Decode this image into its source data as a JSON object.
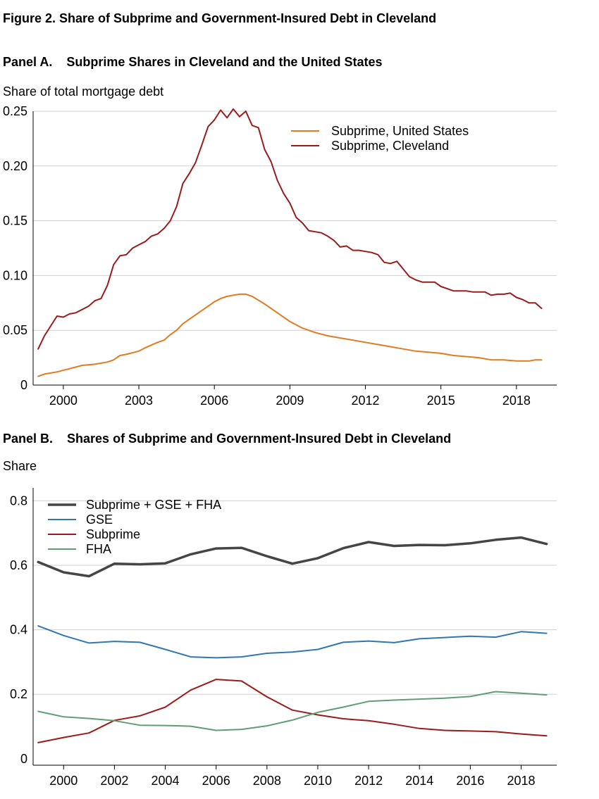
{
  "figure_title": "Figure  2.  Share of Subprime and Government-Insured Debt in Cleveland",
  "chart_data": [
    {
      "type": "line",
      "panel_title": "Panel A.    Subprime Shares in Cleveland and the United States",
      "ylabel": "Share of total mortgage debt",
      "xlim": [
        1998.8,
        2019.6
      ],
      "ylim": [
        0,
        0.25
      ],
      "xticks": [
        2000,
        2003,
        2006,
        2009,
        2012,
        2015,
        2018
      ],
      "xtick_labels": [
        "2000",
        "2003",
        "2006",
        "2009",
        "2012",
        "2015",
        "2018"
      ],
      "yticks": [
        0,
        0.05,
        0.1,
        0.15,
        0.2,
        0.25
      ],
      "ytick_labels": [
        "0",
        "0.05",
        "0.10",
        "0.15",
        "0.20",
        "0.25"
      ],
      "grid": "horizontal",
      "legend_position": "top-right",
      "series": [
        {
          "name": "Subprime, United States",
          "color": "#e07b22",
          "x": [
            1999.0,
            1999.25,
            1999.75,
            2000.25,
            2000.75,
            2001.25,
            2001.75,
            2002.0,
            2002.25,
            2002.5,
            2003.0,
            2003.25,
            2003.75,
            2004.0,
            2004.25,
            2004.5,
            2004.75,
            2005.0,
            2005.25,
            2005.5,
            2005.75,
            2006.0,
            2006.25,
            2006.5,
            2006.75,
            2007.0,
            2007.25,
            2007.5,
            2008.0,
            2008.5,
            2009.0,
            2009.5,
            2010.0,
            2010.5,
            2011.0,
            2011.5,
            2012.0,
            2012.5,
            2013.0,
            2013.5,
            2014.0,
            2014.5,
            2015.0,
            2015.5,
            2016.0,
            2016.5,
            2017.0,
            2017.5,
            2018.0,
            2018.5,
            2018.75,
            2019.0
          ],
          "y": [
            0.008,
            0.01,
            0.012,
            0.015,
            0.018,
            0.019,
            0.021,
            0.023,
            0.027,
            0.028,
            0.031,
            0.034,
            0.039,
            0.041,
            0.046,
            0.05,
            0.056,
            0.06,
            0.064,
            0.068,
            0.072,
            0.076,
            0.079,
            0.081,
            0.082,
            0.083,
            0.083,
            0.081,
            0.074,
            0.066,
            0.058,
            0.052,
            0.048,
            0.045,
            0.043,
            0.041,
            0.039,
            0.037,
            0.035,
            0.033,
            0.031,
            0.03,
            0.029,
            0.027,
            0.026,
            0.025,
            0.023,
            0.023,
            0.022,
            0.022,
            0.023,
            0.023
          ]
        },
        {
          "name": "Subprime, Cleveland",
          "color": "#9b1b1b",
          "x": [
            1999.0,
            1999.25,
            1999.5,
            1999.75,
            2000.0,
            2000.25,
            2000.5,
            2000.75,
            2001.0,
            2001.25,
            2001.5,
            2001.75,
            2002.0,
            2002.25,
            2002.5,
            2002.75,
            2003.0,
            2003.25,
            2003.5,
            2003.75,
            2004.0,
            2004.25,
            2004.5,
            2004.75,
            2005.0,
            2005.25,
            2005.5,
            2005.75,
            2006.0,
            2006.25,
            2006.5,
            2006.75,
            2007.0,
            2007.25,
            2007.5,
            2007.75,
            2008.0,
            2008.25,
            2008.5,
            2008.75,
            2009.0,
            2009.25,
            2009.5,
            2009.75,
            2010.0,
            2010.25,
            2010.5,
            2010.75,
            2011.0,
            2011.25,
            2011.5,
            2011.75,
            2012.0,
            2012.25,
            2012.5,
            2012.75,
            2013.0,
            2013.25,
            2013.5,
            2013.75,
            2014.0,
            2014.25,
            2014.5,
            2014.75,
            2015.0,
            2015.25,
            2015.5,
            2015.75,
            2016.0,
            2016.25,
            2016.5,
            2016.75,
            2017.0,
            2017.25,
            2017.5,
            2017.75,
            2018.0,
            2018.25,
            2018.5,
            2018.75,
            2019.0
          ],
          "y": [
            0.033,
            0.045,
            0.054,
            0.063,
            0.062,
            0.065,
            0.066,
            0.069,
            0.072,
            0.077,
            0.079,
            0.091,
            0.11,
            0.118,
            0.119,
            0.125,
            0.128,
            0.131,
            0.136,
            0.138,
            0.143,
            0.15,
            0.163,
            0.184,
            0.193,
            0.203,
            0.219,
            0.236,
            0.242,
            0.251,
            0.244,
            0.252,
            0.245,
            0.25,
            0.237,
            0.235,
            0.215,
            0.204,
            0.187,
            0.175,
            0.166,
            0.153,
            0.148,
            0.141,
            0.14,
            0.139,
            0.136,
            0.132,
            0.126,
            0.127,
            0.123,
            0.123,
            0.122,
            0.121,
            0.119,
            0.112,
            0.111,
            0.113,
            0.106,
            0.099,
            0.096,
            0.094,
            0.094,
            0.094,
            0.09,
            0.088,
            0.086,
            0.086,
            0.086,
            0.085,
            0.085,
            0.085,
            0.082,
            0.083,
            0.083,
            0.084,
            0.08,
            0.078,
            0.075,
            0.075,
            0.07
          ]
        }
      ]
    },
    {
      "type": "line",
      "panel_title": "Panel B.    Shares of Subprime and Government-Insured Debt in Cleveland",
      "ylabel": "Share",
      "xlim": [
        1998.8,
        2019.4
      ],
      "ylim": [
        -0.02,
        0.84
      ],
      "xticks": [
        2000,
        2002,
        2004,
        2006,
        2008,
        2010,
        2012,
        2014,
        2016,
        2018
      ],
      "xtick_labels": [
        "2000",
        "2002",
        "2004",
        "2006",
        "2008",
        "2010",
        "2012",
        "2014",
        "2016",
        "2018"
      ],
      "yticks": [
        0,
        0.2,
        0.4,
        0.6,
        0.8
      ],
      "ytick_labels": [
        "0",
        "0.2",
        "0.4",
        "0.6",
        "0.8"
      ],
      "grid": "horizontal",
      "legend_position": "top-left",
      "series": [
        {
          "name": "Subprime + GSE + FHA",
          "color": "#454545",
          "x": [
            1999,
            2000,
            2001,
            2002,
            2003,
            2004,
            2005,
            2006,
            2007,
            2008,
            2009,
            2010,
            2011,
            2012,
            2013,
            2014,
            2015,
            2016,
            2017,
            2018,
            2019
          ],
          "y": [
            0.61,
            0.578,
            0.566,
            0.605,
            0.603,
            0.606,
            0.634,
            0.652,
            0.654,
            0.628,
            0.605,
            0.622,
            0.653,
            0.672,
            0.66,
            0.663,
            0.662,
            0.668,
            0.679,
            0.686,
            0.666
          ]
        },
        {
          "name": "GSE",
          "color": "#2f77b3",
          "x": [
            1999,
            2000,
            2001,
            2002,
            2003,
            2004,
            2005,
            2006,
            2007,
            2008,
            2009,
            2010,
            2011,
            2012,
            2013,
            2014,
            2015,
            2016,
            2017,
            2018,
            2019
          ],
          "y": [
            0.412,
            0.382,
            0.359,
            0.364,
            0.361,
            0.339,
            0.316,
            0.313,
            0.316,
            0.327,
            0.331,
            0.339,
            0.361,
            0.365,
            0.36,
            0.372,
            0.376,
            0.38,
            0.377,
            0.394,
            0.389
          ]
        },
        {
          "name": "Subprime",
          "color": "#9b1b1b",
          "x": [
            1999,
            2000,
            2001,
            2002,
            2003,
            2004,
            2005,
            2006,
            2007,
            2008,
            2009,
            2010,
            2011,
            2012,
            2013,
            2014,
            2015,
            2016,
            2017,
            2018,
            2019
          ],
          "y": [
            0.05,
            0.066,
            0.08,
            0.119,
            0.133,
            0.16,
            0.213,
            0.246,
            0.241,
            0.192,
            0.151,
            0.136,
            0.124,
            0.118,
            0.107,
            0.094,
            0.088,
            0.086,
            0.084,
            0.077,
            0.071
          ]
        },
        {
          "name": "FHA",
          "color": "#5f9e72",
          "x": [
            1999,
            2000,
            2001,
            2002,
            2003,
            2004,
            2005,
            2006,
            2007,
            2008,
            2009,
            2010,
            2011,
            2012,
            2013,
            2014,
            2015,
            2016,
            2017,
            2018,
            2019
          ],
          "y": [
            0.147,
            0.13,
            0.125,
            0.118,
            0.104,
            0.103,
            0.101,
            0.088,
            0.091,
            0.102,
            0.12,
            0.144,
            0.16,
            0.178,
            0.182,
            0.185,
            0.188,
            0.193,
            0.208,
            0.203,
            0.198
          ]
        }
      ]
    }
  ]
}
